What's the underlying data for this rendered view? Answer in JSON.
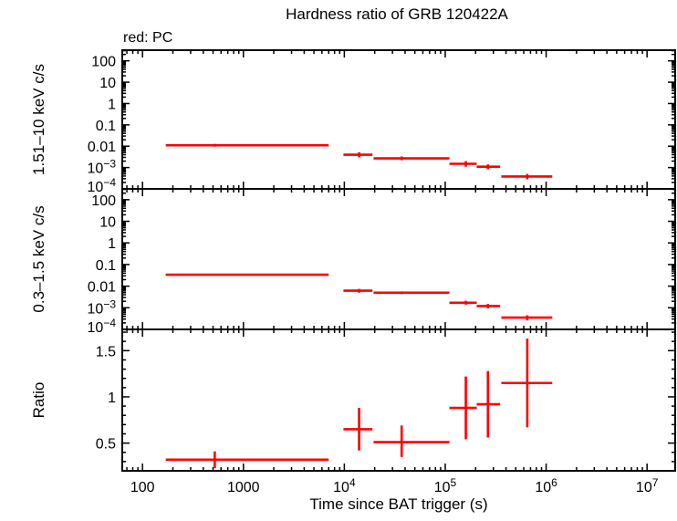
{
  "title": "Hardness ratio of GRB 120422A",
  "subtitle": "red: PC",
  "chart_data": [
    {
      "type": "scatter",
      "ylabel": "1.51–10 keV c/s",
      "yscale": "log",
      "ylim": [
        0.0001,
        316
      ],
      "yticks": [
        {
          "v": 100,
          "label": "100"
        },
        {
          "v": 10,
          "label": "10"
        },
        {
          "v": 1,
          "label": "1"
        },
        {
          "v": 0.1,
          "label": "0.1"
        },
        {
          "v": 0.01,
          "label": "0.01"
        },
        {
          "v": 0.001,
          "label": "10",
          "exp": "−3"
        },
        {
          "v": 0.0001,
          "label": "10",
          "exp": "−4"
        }
      ],
      "color": "#ff0000",
      "points": [
        {
          "x": 520,
          "xlo": 170,
          "xhi": 7000,
          "y": 0.011,
          "ylo": 0.0095,
          "yhi": 0.0128
        },
        {
          "x": 14000,
          "xlo": 9800,
          "xhi": 19000,
          "y": 0.004,
          "ylo": 0.003,
          "yhi": 0.0052
        },
        {
          "x": 37000,
          "xlo": 19500,
          "xhi": 110000,
          "y": 0.0027,
          "ylo": 0.0022,
          "yhi": 0.0033
        },
        {
          "x": 160000,
          "xlo": 110000,
          "xhi": 205000,
          "y": 0.0015,
          "ylo": 0.0011,
          "yhi": 0.002
        },
        {
          "x": 265000,
          "xlo": 205000,
          "xhi": 350000,
          "y": 0.0011,
          "ylo": 0.00085,
          "yhi": 0.0014
        },
        {
          "x": 650000,
          "xlo": 360000,
          "xhi": 1150000,
          "y": 0.00038,
          "ylo": 0.00028,
          "yhi": 0.0005
        }
      ]
    },
    {
      "type": "scatter",
      "ylabel": "0.3–1.5 keV c/s",
      "yscale": "log",
      "ylim": [
        0.0001,
        316
      ],
      "yticks": [
        {
          "v": 100,
          "label": "100"
        },
        {
          "v": 10,
          "label": "10"
        },
        {
          "v": 1,
          "label": "1"
        },
        {
          "v": 0.1,
          "label": "0.1"
        },
        {
          "v": 0.01,
          "label": "0.01"
        },
        {
          "v": 0.001,
          "label": "10",
          "exp": "−3"
        },
        {
          "v": 0.0001,
          "label": "10",
          "exp": "−4"
        }
      ],
      "color": "#ff0000",
      "points": [
        {
          "x": 520,
          "xlo": 170,
          "xhi": 7000,
          "y": 0.034,
          "ylo": 0.031,
          "yhi": 0.037
        },
        {
          "x": 14000,
          "xlo": 9800,
          "xhi": 19000,
          "y": 0.0062,
          "ylo": 0.005,
          "yhi": 0.0075
        },
        {
          "x": 37000,
          "xlo": 19500,
          "xhi": 110000,
          "y": 0.005,
          "ylo": 0.0043,
          "yhi": 0.0057
        },
        {
          "x": 160000,
          "xlo": 110000,
          "xhi": 205000,
          "y": 0.0017,
          "ylo": 0.0014,
          "yhi": 0.0021
        },
        {
          "x": 265000,
          "xlo": 205000,
          "xhi": 350000,
          "y": 0.0012,
          "ylo": 0.00095,
          "yhi": 0.0015
        },
        {
          "x": 650000,
          "xlo": 360000,
          "xhi": 1150000,
          "y": 0.00035,
          "ylo": 0.00026,
          "yhi": 0.00045
        }
      ]
    },
    {
      "type": "scatter",
      "ylabel": "Ratio",
      "yscale": "linear",
      "ylim": [
        0.2,
        1.73
      ],
      "yticks": [
        {
          "v": 0.5,
          "label": "0.5"
        },
        {
          "v": 1,
          "label": "1"
        },
        {
          "v": 1.5,
          "label": "1.5"
        }
      ],
      "xlabel": "Time since BAT trigger (s)",
      "xscale": "log",
      "xlim": [
        63,
        19000000
      ],
      "xticks": [
        {
          "v": 100,
          "label": "100"
        },
        {
          "v": 1000,
          "label": "1000"
        },
        {
          "v": 10000,
          "label": "10",
          "exp": "4"
        },
        {
          "v": 100000,
          "label": "10",
          "exp": "5"
        },
        {
          "v": 1000000,
          "label": "10",
          "exp": "6"
        },
        {
          "v": 10000000,
          "label": "10",
          "exp": "7"
        }
      ],
      "color": "#ff0000",
      "points": [
        {
          "x": 520,
          "xlo": 170,
          "xhi": 7000,
          "y": 0.32,
          "ylo": 0.23,
          "yhi": 0.41
        },
        {
          "x": 14000,
          "xlo": 9800,
          "xhi": 19000,
          "y": 0.65,
          "ylo": 0.42,
          "yhi": 0.88
        },
        {
          "x": 37000,
          "xlo": 19500,
          "xhi": 110000,
          "y": 0.51,
          "ylo": 0.35,
          "yhi": 0.69
        },
        {
          "x": 160000,
          "xlo": 110000,
          "xhi": 205000,
          "y": 0.88,
          "ylo": 0.54,
          "yhi": 1.22
        },
        {
          "x": 265000,
          "xlo": 205000,
          "xhi": 350000,
          "y": 0.92,
          "ylo": 0.56,
          "yhi": 1.28
        },
        {
          "x": 650000,
          "xlo": 360000,
          "xhi": 1150000,
          "y": 1.15,
          "ylo": 0.67,
          "yhi": 1.63
        }
      ]
    }
  ]
}
